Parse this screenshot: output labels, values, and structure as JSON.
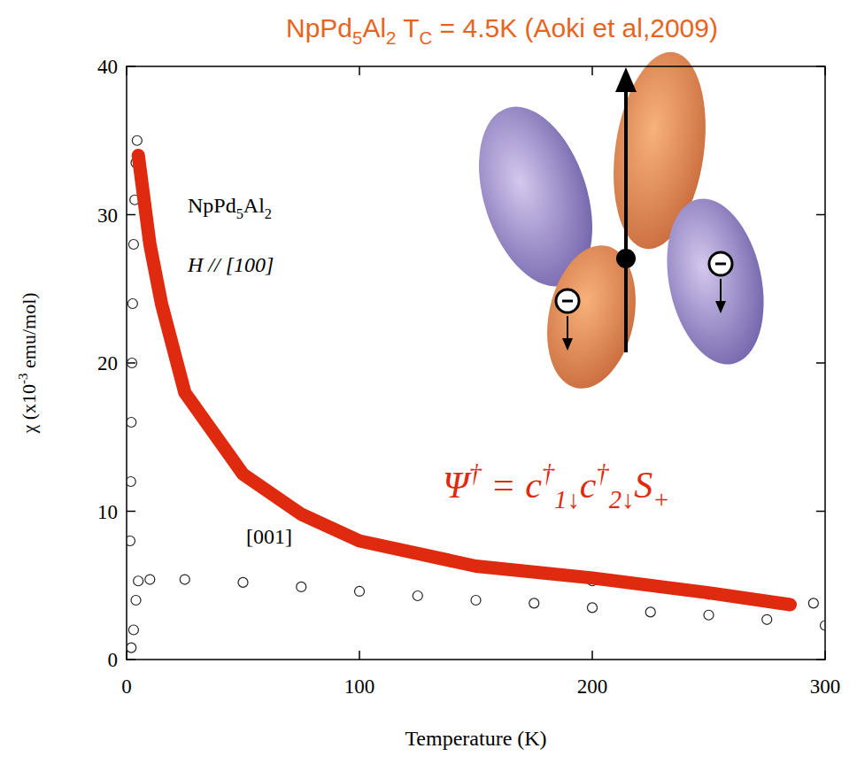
{
  "chart_data": {
    "type": "scatter",
    "title": "NpPd5Al2 TC = 4.5K (Aoki et al,2009)",
    "x_label": "Temperature (K)",
    "y_label": "χ (x10-3 emu/mol)",
    "xlim": [
      0,
      300
    ],
    "ylim": [
      0,
      40
    ],
    "xticks": [
      0,
      100,
      200,
      300
    ],
    "yticks": [
      0,
      10,
      20,
      30,
      40
    ],
    "grid": false,
    "annotations": [
      "NpPd5Al2",
      "H // [100]",
      "[001]",
      "Ψ† = c†1↓c†2↓S+"
    ],
    "series": [
      {
        "name": "H // [100]",
        "color": "#222222",
        "marker": "circle",
        "line_style": "none",
        "x": [
          1.5,
          1.8,
          2.0,
          2.3,
          2.6,
          3.0,
          3.5,
          4.0,
          4.5,
          5,
          10,
          15,
          25,
          50,
          75,
          100,
          150,
          200,
          250,
          295
        ],
        "values": [
          8,
          12,
          16,
          20,
          24,
          28,
          31,
          33.5,
          35,
          34,
          28,
          24,
          18,
          12.5,
          9.8,
          8,
          6.3,
          5.3,
          4.4,
          3.8
        ]
      },
      {
        "name": "[001]",
        "color": "#222222",
        "marker": "circle",
        "line_style": "none",
        "x": [
          2,
          3,
          4,
          5,
          10,
          25,
          50,
          75,
          100,
          125,
          150,
          175,
          200,
          225,
          250,
          275,
          300
        ],
        "values": [
          0.8,
          2,
          4,
          5.3,
          5.4,
          5.4,
          5.2,
          4.9,
          4.6,
          4.3,
          4.0,
          3.8,
          3.5,
          3.2,
          3.0,
          2.7,
          2.3
        ]
      },
      {
        "type": "line",
        "color": "#e02a10",
        "marker": "none",
        "line_style": "solid",
        "x": [
          5,
          10,
          15,
          25,
          50,
          75,
          100,
          150,
          200,
          250,
          285
        ],
        "values": [
          34,
          28,
          24,
          18,
          12.5,
          9.8,
          8,
          6.3,
          5.5,
          4.5,
          3.7
        ]
      }
    ]
  }
}
